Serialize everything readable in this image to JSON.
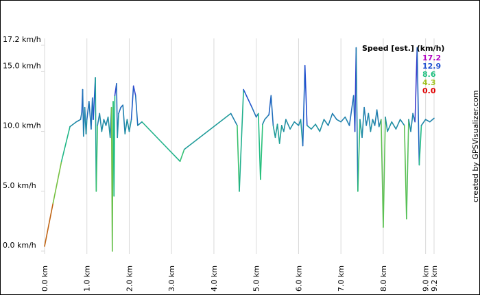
{
  "chart_data": {
    "type": "line",
    "xlabel": "",
    "ylabel": "",
    "x_tick_labels": [
      "0.0 km",
      "1.0 km",
      "2.0 km",
      "3.0 km",
      "4.0 km",
      "5.0 km",
      "6.0 km",
      "7.0 km",
      "8.0 km",
      "9.0 km",
      "9.2 km"
    ],
    "x_ticks": [
      0,
      1,
      2,
      3,
      4,
      5,
      6,
      7,
      8,
      9,
      9.2
    ],
    "y_tick_labels": [
      "0.0 km/h",
      "5.0 km/h",
      "10.0 km/h",
      "15.0 km/h",
      "17.2 km/h"
    ],
    "y_ticks": [
      0,
      5,
      10,
      15,
      17.2
    ],
    "xlim": [
      0,
      9.2
    ],
    "ylim": [
      0,
      17.2
    ],
    "grid": "vertical",
    "legend": {
      "title": "Speed [est.] (km/h)",
      "placement": "top-right",
      "entries": [
        {
          "label": "17.2",
          "color": "#b000c0"
        },
        {
          "label": "12.9",
          "color": "#2050d0"
        },
        {
          "label": "8.6",
          "color": "#20c080"
        },
        {
          "label": "4.3",
          "color": "#a0c020"
        },
        {
          "label": "0.0",
          "color": "#e00000"
        }
      ]
    },
    "series": [
      {
        "values": [
          [
            0.0,
            0.4
          ],
          [
            0.2,
            4.0
          ],
          [
            0.4,
            7.5
          ],
          [
            0.6,
            10.4
          ],
          [
            0.75,
            10.8
          ],
          [
            0.85,
            11.0
          ],
          [
            0.88,
            11.6
          ],
          [
            0.9,
            13.5
          ],
          [
            0.92,
            9.6
          ],
          [
            0.95,
            12.0
          ],
          [
            0.98,
            9.8
          ],
          [
            1.0,
            11.0
          ],
          [
            1.05,
            12.5
          ],
          [
            1.1,
            10.2
          ],
          [
            1.13,
            12.8
          ],
          [
            1.15,
            11.0
          ],
          [
            1.2,
            14.5
          ],
          [
            1.22,
            5.0
          ],
          [
            1.25,
            10.5
          ],
          [
            1.3,
            11.5
          ],
          [
            1.35,
            10.0
          ],
          [
            1.4,
            11.0
          ],
          [
            1.45,
            10.5
          ],
          [
            1.5,
            11.2
          ],
          [
            1.55,
            9.5
          ],
          [
            1.58,
            12.0
          ],
          [
            1.6,
            0.0
          ],
          [
            1.62,
            12.5
          ],
          [
            1.64,
            4.6
          ],
          [
            1.66,
            13.0
          ],
          [
            1.7,
            14.0
          ],
          [
            1.72,
            9.5
          ],
          [
            1.75,
            11.5
          ],
          [
            1.8,
            12.0
          ],
          [
            1.85,
            12.2
          ],
          [
            1.9,
            9.8
          ],
          [
            1.95,
            11.0
          ],
          [
            2.0,
            10.0
          ],
          [
            2.05,
            11.0
          ],
          [
            2.1,
            13.8
          ],
          [
            2.15,
            13.0
          ],
          [
            2.2,
            10.5
          ],
          [
            2.3,
            10.8
          ],
          [
            3.2,
            7.5
          ],
          [
            3.3,
            8.5
          ],
          [
            4.4,
            11.5
          ],
          [
            4.55,
            10.5
          ],
          [
            4.6,
            5.0
          ],
          [
            4.7,
            13.5
          ],
          [
            4.9,
            12.0
          ],
          [
            5.0,
            11.2
          ],
          [
            5.05,
            11.5
          ],
          [
            5.1,
            6.0
          ],
          [
            5.15,
            10.6
          ],
          [
            5.2,
            11.0
          ],
          [
            5.3,
            11.4
          ],
          [
            5.35,
            13.0
          ],
          [
            5.4,
            10.5
          ],
          [
            5.45,
            9.5
          ],
          [
            5.5,
            10.6
          ],
          [
            5.55,
            9.0
          ],
          [
            5.6,
            10.5
          ],
          [
            5.65,
            10.0
          ],
          [
            5.7,
            11.0
          ],
          [
            5.8,
            10.2
          ],
          [
            5.9,
            10.8
          ],
          [
            6.0,
            10.5
          ],
          [
            6.05,
            11.0
          ],
          [
            6.1,
            8.8
          ],
          [
            6.15,
            15.5
          ],
          [
            6.2,
            10.5
          ],
          [
            6.3,
            10.2
          ],
          [
            6.4,
            10.6
          ],
          [
            6.5,
            10.0
          ],
          [
            6.6,
            11.0
          ],
          [
            6.7,
            10.5
          ],
          [
            6.8,
            11.5
          ],
          [
            6.9,
            11.0
          ],
          [
            7.0,
            10.8
          ],
          [
            7.1,
            11.2
          ],
          [
            7.2,
            10.5
          ],
          [
            7.3,
            13.0
          ],
          [
            7.33,
            10.0
          ],
          [
            7.36,
            17.0
          ],
          [
            7.4,
            5.0
          ],
          [
            7.45,
            11.0
          ],
          [
            7.5,
            9.5
          ],
          [
            7.55,
            12.0
          ],
          [
            7.6,
            10.5
          ],
          [
            7.65,
            11.5
          ],
          [
            7.7,
            10.0
          ],
          [
            7.75,
            11.0
          ],
          [
            7.8,
            10.5
          ],
          [
            7.85,
            11.8
          ],
          [
            7.9,
            10.4
          ],
          [
            7.95,
            11.0
          ],
          [
            8.0,
            2.0
          ],
          [
            8.05,
            11.2
          ],
          [
            8.1,
            10.0
          ],
          [
            8.2,
            10.8
          ],
          [
            8.3,
            10.2
          ],
          [
            8.4,
            11.0
          ],
          [
            8.5,
            10.5
          ],
          [
            8.55,
            2.7
          ],
          [
            8.6,
            11.0
          ],
          [
            8.65,
            10.0
          ],
          [
            8.7,
            11.5
          ],
          [
            8.75,
            10.8
          ],
          [
            8.8,
            17.0
          ],
          [
            8.85,
            7.2
          ],
          [
            8.9,
            10.5
          ],
          [
            9.0,
            11.0
          ],
          [
            9.1,
            10.8
          ],
          [
            9.2,
            11.1
          ]
        ]
      }
    ]
  },
  "credit": "created by GPSVisualizer.com"
}
